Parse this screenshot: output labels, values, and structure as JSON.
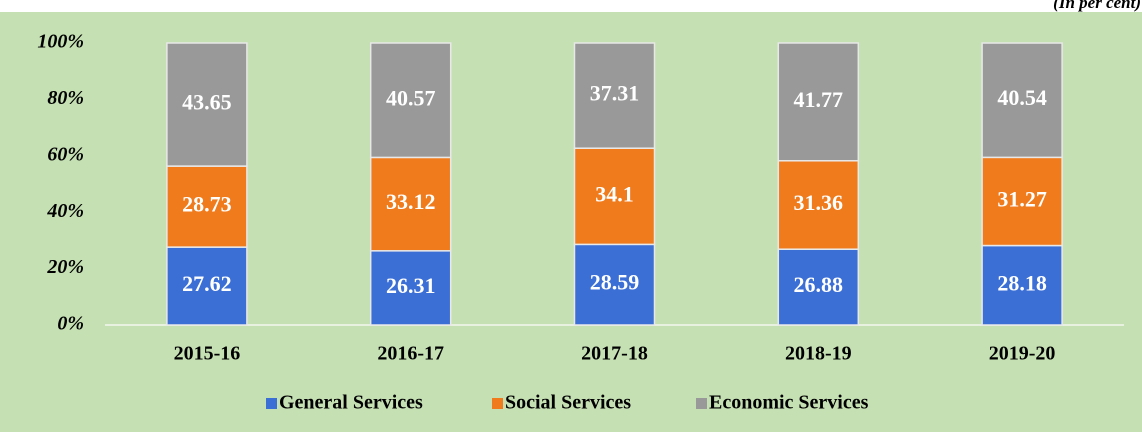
{
  "chart_data": {
    "type": "stacked_bar",
    "annotation": "(In per cent)",
    "categories": [
      "2015-16",
      "2016-17",
      "2017-18",
      "2018-19",
      "2019-20"
    ],
    "series": [
      {
        "name": "General Services",
        "color": "#3b6fd6",
        "values": [
          27.62,
          26.31,
          28.59,
          26.88,
          28.18
        ]
      },
      {
        "name": "Social Services",
        "color": "#f07b1c",
        "values": [
          28.73,
          33.12,
          34.1,
          31.36,
          31.27
        ]
      },
      {
        "name": "Economic Services",
        "color": "#999999",
        "values": [
          43.65,
          40.57,
          37.31,
          41.77,
          40.54
        ]
      }
    ],
    "ylim": [
      0,
      100
    ],
    "yticks": [
      {
        "value": 0,
        "label": "0%"
      },
      {
        "value": 20,
        "label": "20%"
      },
      {
        "value": 40,
        "label": "40%"
      },
      {
        "value": 60,
        "label": "60%"
      },
      {
        "value": 80,
        "label": "80%"
      },
      {
        "value": 100,
        "label": "100%"
      }
    ],
    "legend": "bottom"
  }
}
